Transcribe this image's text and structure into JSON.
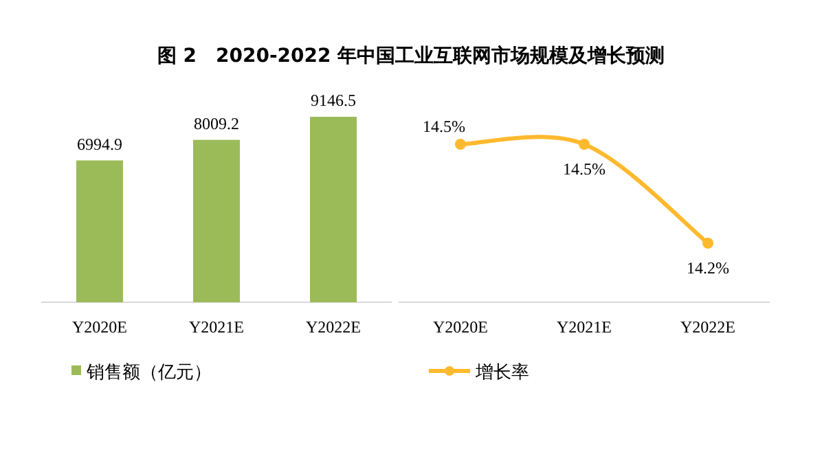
{
  "chart_data": [
    {
      "type": "bar",
      "title": "图 2　2020-2022 年中国工业互联网市场规模及增长预测",
      "categories": [
        "Y2020E",
        "Y2021E",
        "Y2022E"
      ],
      "series": [
        {
          "name": "销售额（亿元）",
          "color": "#9bbb59",
          "values": [
            6994.9,
            8009.2,
            9146.5
          ]
        }
      ],
      "data_labels": true,
      "legend": "bottom"
    },
    {
      "type": "line",
      "categories": [
        "Y2020E",
        "Y2021E",
        "Y2022E"
      ],
      "series": [
        {
          "name": "增长率",
          "color": "#ffb92e",
          "values": [
            14.5,
            14.5,
            14.2
          ],
          "value_labels": [
            "14.5%",
            "14.5%",
            "14.2%"
          ]
        }
      ],
      "marker": "circle",
      "legend": "bottom"
    }
  ]
}
